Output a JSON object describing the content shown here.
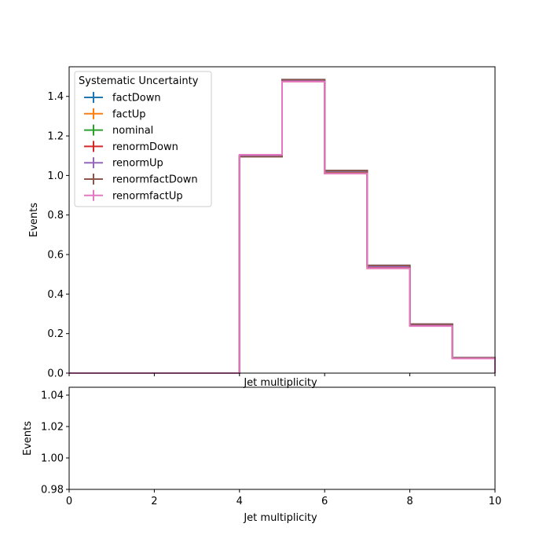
{
  "chart_data": [
    {
      "type": "histogram-step",
      "xlabel": "Jet multiplicity",
      "ylabel": "Events",
      "xlim": [
        0,
        10
      ],
      "ylim": [
        0,
        1.55
      ],
      "yticks": [
        "0.0",
        "0.2",
        "0.4",
        "0.6",
        "0.8",
        "1.0",
        "1.2",
        "1.4"
      ],
      "ytick_values": [
        0,
        0.2,
        0.4,
        0.6,
        0.8,
        1.0,
        1.2,
        1.4
      ],
      "xticks": [
        0,
        2,
        4,
        6,
        8,
        10
      ],
      "show_xtick_labels": false,
      "legend": {
        "title": "Systematic Uncertainty",
        "placement": "top-left"
      },
      "bin_edges": [
        0,
        1,
        2,
        3,
        4,
        5,
        6,
        7,
        8,
        9,
        10
      ],
      "series": [
        {
          "name": "factDown",
          "color": "#1f77b4",
          "values": [
            0,
            0,
            0,
            0,
            1.1,
            1.485,
            1.025,
            0.545,
            0.248,
            0.078
          ]
        },
        {
          "name": "factUp",
          "color": "#ff7f0e",
          "values": [
            0,
            0,
            0,
            0,
            1.1,
            1.475,
            1.01,
            0.53,
            0.24,
            0.075
          ]
        },
        {
          "name": "nominal",
          "color": "#2ca02c",
          "values": [
            0,
            0,
            0,
            0,
            1.1,
            1.48,
            1.02,
            0.54,
            0.245,
            0.077
          ]
        },
        {
          "name": "renormDown",
          "color": "#d62728",
          "values": [
            0,
            0,
            0,
            0,
            1.095,
            1.478,
            1.012,
            0.532,
            0.242,
            0.076
          ]
        },
        {
          "name": "renormUp",
          "color": "#9467bd",
          "values": [
            0,
            0,
            0,
            0,
            1.1,
            1.482,
            1.022,
            0.54,
            0.246,
            0.077
          ]
        },
        {
          "name": "renormfactDown",
          "color": "#8c564b",
          "values": [
            0,
            0,
            0,
            0,
            1.095,
            1.485,
            1.025,
            0.545,
            0.248,
            0.078
          ]
        },
        {
          "name": "renormfactUp",
          "color": "#e377c2",
          "values": [
            0,
            0,
            0,
            0,
            1.105,
            1.475,
            1.01,
            0.53,
            0.238,
            0.074
          ]
        }
      ]
    },
    {
      "type": "line",
      "xlabel": "Jet multiplicity",
      "ylabel": "Events",
      "xlim": [
        0,
        10
      ],
      "ylim": [
        0.98,
        1.045
      ],
      "xticks": [
        "0",
        "2",
        "4",
        "6",
        "8",
        "10"
      ],
      "xtick_values": [
        0,
        2,
        4,
        6,
        8,
        10
      ],
      "yticks": [
        "0.98",
        "1.00",
        "1.02",
        "1.04"
      ],
      "ytick_values": [
        0.98,
        1.0,
        1.02,
        1.04
      ],
      "series": []
    }
  ]
}
